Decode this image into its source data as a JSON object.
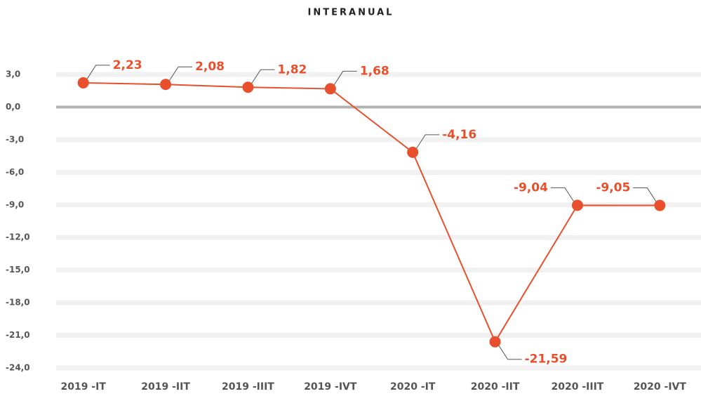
{
  "chart_data": {
    "type": "line",
    "title": "INTERANUAL",
    "categories": [
      "2019 -IT",
      "2019 -IIT",
      "2019 -IIIT",
      "2019 -IVT",
      "2020 -IT",
      "2020 -IIT",
      "2020 -IIIT",
      "2020 -IVT"
    ],
    "series": [
      {
        "name": "Interanual",
        "color": "#e8502d",
        "values": [
          2.23,
          2.08,
          1.82,
          1.68,
          -4.16,
          -21.59,
          -9.04,
          -9.05
        ],
        "value_labels": [
          "2,23",
          "2,08",
          "1,82",
          "1,68",
          "-4,16",
          "-21,59",
          "-9,04",
          "-9,05"
        ]
      }
    ],
    "ylim": [
      -24,
      3
    ],
    "yticks": [
      {
        "value": 3,
        "label": "3,0"
      },
      {
        "value": 0,
        "label": "0,0"
      },
      {
        "value": -3,
        "label": "-3,0"
      },
      {
        "value": -6,
        "label": "-6,0"
      },
      {
        "value": -9,
        "label": "-9,0"
      },
      {
        "value": -12,
        "label": "-12,0"
      },
      {
        "value": -15,
        "label": "-15,0"
      },
      {
        "value": -18,
        "label": "-18,0"
      },
      {
        "value": -21,
        "label": "-21,0"
      },
      {
        "value": -24,
        "label": "-24,0"
      }
    ],
    "grid": true
  }
}
